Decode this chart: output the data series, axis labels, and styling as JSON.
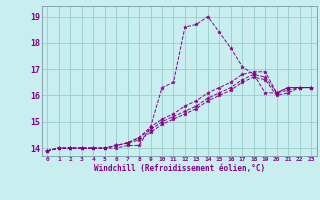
{
  "title": "",
  "xlabel": "Windchill (Refroidissement éolien,°C)",
  "background_color": "#c8eef0",
  "line_color": "#880088",
  "grid_color": "#99cccc",
  "xlim": [
    -0.5,
    23.5
  ],
  "ylim": [
    13.7,
    19.4
  ],
  "xticks": [
    0,
    1,
    2,
    3,
    4,
    5,
    6,
    7,
    8,
    9,
    10,
    11,
    12,
    13,
    14,
    15,
    16,
    17,
    18,
    19,
    20,
    21,
    22,
    23
  ],
  "yticks": [
    14,
    15,
    16,
    17,
    18,
    19
  ],
  "series": [
    {
      "x": [
        0,
        1,
        2,
        3,
        4,
        5,
        6,
        7,
        8,
        9,
        10,
        11,
        12,
        13,
        14,
        15,
        16,
        17,
        18,
        19,
        20,
        21,
        22,
        23
      ],
      "y": [
        13.9,
        14.0,
        14.0,
        14.0,
        14.0,
        14.0,
        14.0,
        14.1,
        14.1,
        14.8,
        16.3,
        16.5,
        18.6,
        18.7,
        19.0,
        18.4,
        17.8,
        17.1,
        16.8,
        16.1,
        16.1,
        16.3,
        16.3,
        16.3
      ]
    },
    {
      "x": [
        0,
        1,
        2,
        3,
        4,
        5,
        6,
        7,
        8,
        9,
        10,
        11,
        12,
        13,
        14,
        15,
        16,
        17,
        18,
        19,
        20,
        21,
        22,
        23
      ],
      "y": [
        13.9,
        14.0,
        14.0,
        14.0,
        14.0,
        14.0,
        14.1,
        14.2,
        14.4,
        14.8,
        15.1,
        15.3,
        15.6,
        15.8,
        16.1,
        16.3,
        16.5,
        16.8,
        16.9,
        16.9,
        16.1,
        16.3,
        16.3,
        16.3
      ]
    },
    {
      "x": [
        0,
        1,
        2,
        3,
        4,
        5,
        6,
        7,
        8,
        9,
        10,
        11,
        12,
        13,
        14,
        15,
        16,
        17,
        18,
        19,
        20,
        21,
        22,
        23
      ],
      "y": [
        13.9,
        14.0,
        14.0,
        14.0,
        14.0,
        14.0,
        14.1,
        14.2,
        14.4,
        14.7,
        15.0,
        15.2,
        15.4,
        15.6,
        15.9,
        16.1,
        16.3,
        16.6,
        16.8,
        16.7,
        16.1,
        16.2,
        16.3,
        16.3
      ]
    },
    {
      "x": [
        0,
        1,
        2,
        3,
        4,
        5,
        6,
        7,
        8,
        9,
        10,
        11,
        12,
        13,
        14,
        15,
        16,
        17,
        18,
        19,
        20,
        21,
        22,
        23
      ],
      "y": [
        13.9,
        14.0,
        14.0,
        14.0,
        14.0,
        14.0,
        14.1,
        14.2,
        14.3,
        14.6,
        14.9,
        15.1,
        15.3,
        15.5,
        15.8,
        16.0,
        16.2,
        16.5,
        16.7,
        16.6,
        16.0,
        16.1,
        16.3,
        16.3
      ]
    }
  ]
}
